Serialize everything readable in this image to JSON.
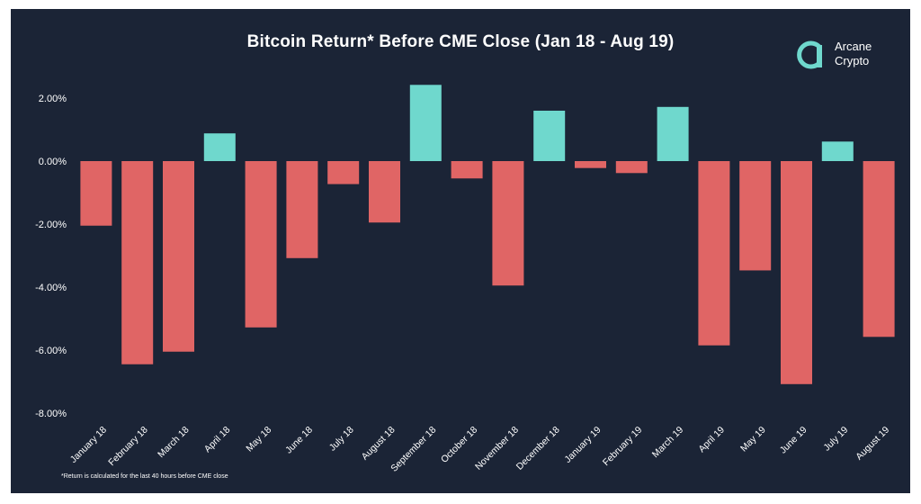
{
  "brand": {
    "name_line1": "Arcane",
    "name_line2": "Crypto",
    "accent_color": "#6fd8cd",
    "icon": "arcane-logo-icon"
  },
  "colors": {
    "background": "#1b2436",
    "positive": "#6fd8cd",
    "negative": "#e06565",
    "text": "#ffffff"
  },
  "footnote": "*Return is calculated for the last 40 hours before CME close",
  "chart_data": {
    "type": "bar",
    "title": "Bitcoin Return* Before CME Close (Jan 18 - Aug 19)",
    "xlabel": "",
    "ylabel": "",
    "categories": [
      "January 18",
      "February 18",
      "March 18",
      "April 18",
      "May 18",
      "June 18",
      "July 18",
      "August 18",
      "September 18",
      "October 18",
      "November 18",
      "December 18",
      "January 19",
      "February 19",
      "March 19",
      "April 19",
      "May 19",
      "June 19",
      "July 19",
      "August 19"
    ],
    "values": [
      -2.05,
      -6.45,
      -6.05,
      0.88,
      -5.28,
      -3.08,
      -0.73,
      -1.95,
      2.42,
      -0.55,
      -3.95,
      1.6,
      -0.22,
      -0.38,
      1.72,
      -5.85,
      -3.47,
      -7.08,
      0.62,
      -5.58
    ],
    "unit": "%",
    "ylim": [
      -8,
      2.5
    ],
    "yticks": [
      2,
      0,
      -2,
      -4,
      -6,
      -8
    ],
    "ytick_labels": [
      "2.00%",
      "0.00%",
      "-2.00%",
      "-4.00%",
      "-6.00%",
      "-8.00%"
    ],
    "grid": false,
    "legend": "none"
  }
}
